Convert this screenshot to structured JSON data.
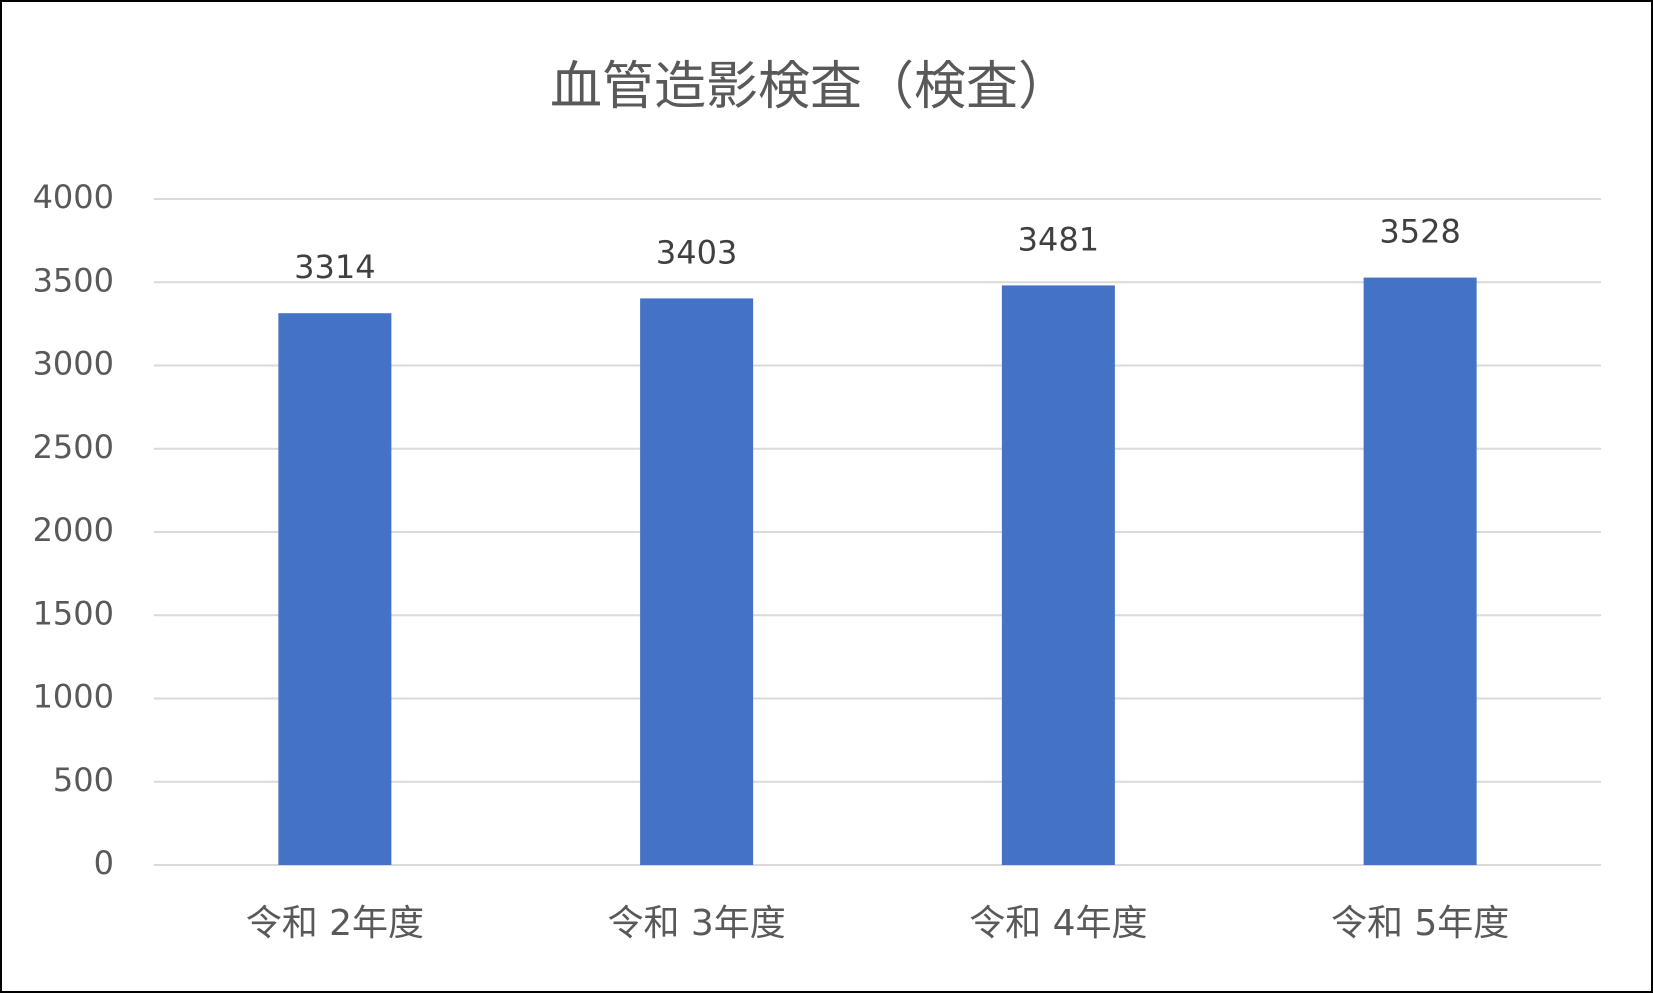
{
  "chart_data": {
    "type": "bar",
    "title": "血管造影検査（検査）",
    "categories": [
      "令和 2年度",
      "令和 3年度",
      "令和 4年度",
      "令和 5年度"
    ],
    "values": [
      3314,
      3403,
      3481,
      3528
    ],
    "color": "#4472c4",
    "ylim": [
      0,
      4000
    ],
    "yticks": [
      0,
      500,
      1000,
      1500,
      2000,
      2500,
      3000,
      3500,
      4000
    ],
    "grid": true,
    "data_labels": true
  }
}
